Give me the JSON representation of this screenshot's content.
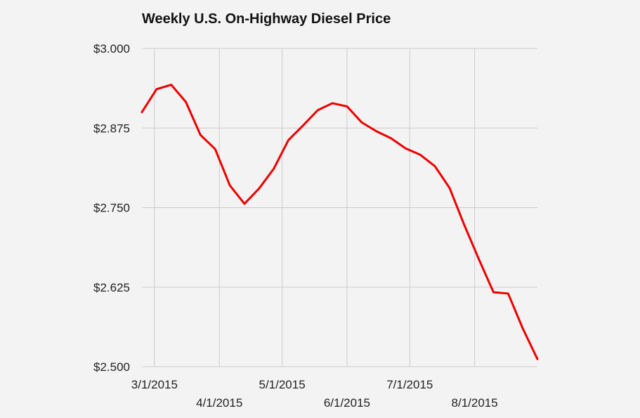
{
  "chart_data": {
    "type": "line",
    "title": "Weekly U.S. On-Highway Diesel Price",
    "xlabel": "",
    "ylabel": "",
    "ylim": [
      2.5,
      3.0
    ],
    "grid": true,
    "legend": "none",
    "y_ticks": [
      {
        "value": 3.0,
        "label": "$3.000"
      },
      {
        "value": 2.875,
        "label": "$2.875"
      },
      {
        "value": 2.75,
        "label": "$2.750"
      },
      {
        "value": 2.625,
        "label": "$2.625"
      },
      {
        "value": 2.5,
        "label": "$2.500"
      }
    ],
    "x_ticks": [
      {
        "date": "2015-03-01",
        "label": "3/1/2015",
        "row": 0
      },
      {
        "date": "2015-04-01",
        "label": "4/1/2015",
        "row": 1
      },
      {
        "date": "2015-05-01",
        "label": "5/1/2015",
        "row": 0
      },
      {
        "date": "2015-06-01",
        "label": "6/1/2015",
        "row": 1
      },
      {
        "date": "2015-07-01",
        "label": "7/1/2015",
        "row": 0
      },
      {
        "date": "2015-08-01",
        "label": "8/1/2015",
        "row": 1
      }
    ],
    "xlim": [
      "2015-02-23",
      "2015-08-31"
    ],
    "series": [
      {
        "name": "Diesel Price",
        "color": "#ee0000",
        "points": [
          {
            "x": "2015-02-23",
            "y": 2.9
          },
          {
            "x": "2015-03-02",
            "y": 2.936
          },
          {
            "x": "2015-03-09",
            "y": 2.943
          },
          {
            "x": "2015-03-16",
            "y": 2.916
          },
          {
            "x": "2015-03-23",
            "y": 2.864
          },
          {
            "x": "2015-03-30",
            "y": 2.842
          },
          {
            "x": "2015-04-06",
            "y": 2.785
          },
          {
            "x": "2015-04-13",
            "y": 2.756
          },
          {
            "x": "2015-04-20",
            "y": 2.78
          },
          {
            "x": "2015-04-27",
            "y": 2.811
          },
          {
            "x": "2015-05-04",
            "y": 2.856
          },
          {
            "x": "2015-05-11",
            "y": 2.879
          },
          {
            "x": "2015-05-18",
            "y": 2.903
          },
          {
            "x": "2015-05-25",
            "y": 2.914
          },
          {
            "x": "2015-06-01",
            "y": 2.909
          },
          {
            "x": "2015-06-08",
            "y": 2.884
          },
          {
            "x": "2015-06-15",
            "y": 2.87
          },
          {
            "x": "2015-06-22",
            "y": 2.859
          },
          {
            "x": "2015-06-29",
            "y": 2.843
          },
          {
            "x": "2015-07-06",
            "y": 2.833
          },
          {
            "x": "2015-07-13",
            "y": 2.815
          },
          {
            "x": "2015-07-20",
            "y": 2.781
          },
          {
            "x": "2015-07-27",
            "y": 2.723
          },
          {
            "x": "2015-08-03",
            "y": 2.669
          },
          {
            "x": "2015-08-10",
            "y": 2.617
          },
          {
            "x": "2015-08-17",
            "y": 2.615
          },
          {
            "x": "2015-08-24",
            "y": 2.56
          },
          {
            "x": "2015-08-31",
            "y": 2.512
          }
        ]
      }
    ]
  }
}
